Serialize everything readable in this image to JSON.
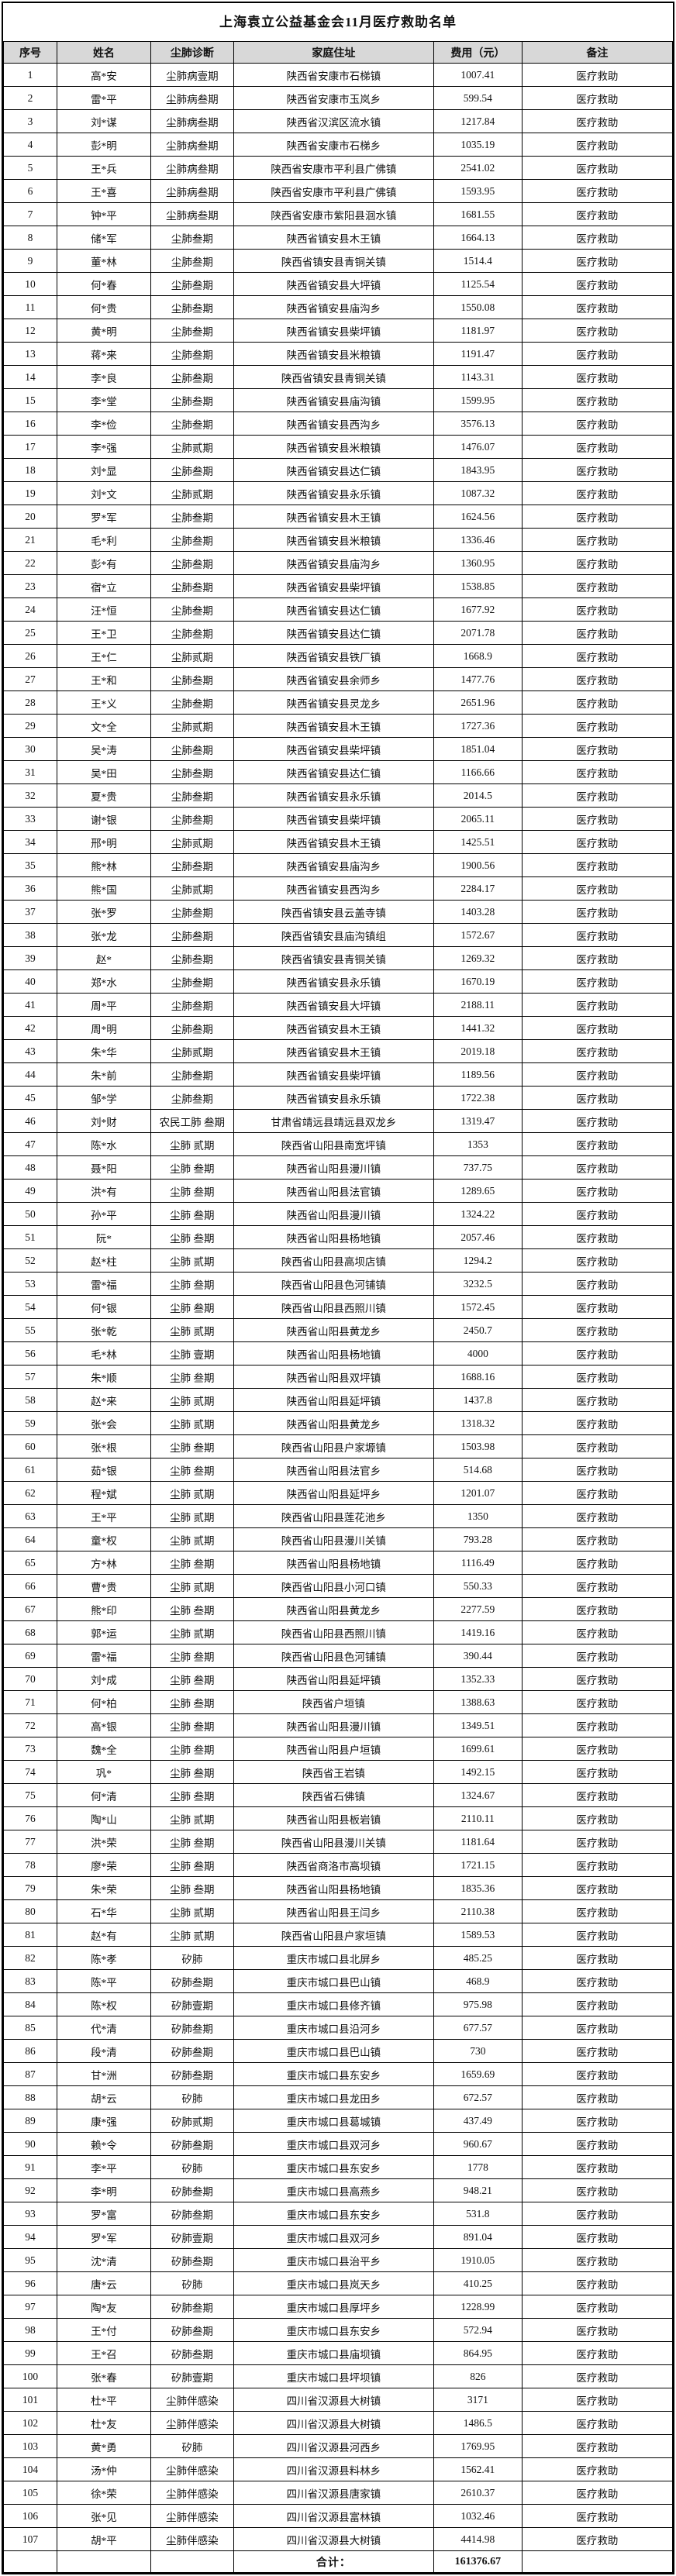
{
  "doc": {
    "title": "上海袁立公益基金会11月医疗救助名单"
  },
  "table": {
    "headers": [
      "序号",
      "姓名",
      "尘肺诊断",
      "家庭住址",
      "费用（元）",
      "备注"
    ],
    "col_keys": [
      "no",
      "name",
      "diagnosis",
      "address",
      "fee",
      "remark"
    ],
    "total_label": "合计：",
    "total_value": "161376.67",
    "rows": [
      [
        "1",
        "高*安",
        "尘肺病壹期",
        "陕西省安康市石梯镇",
        "1007.41",
        "医疗救助"
      ],
      [
        "2",
        "雷*平",
        "尘肺病叁期",
        "陕西省安康市玉岚乡",
        "599.54",
        "医疗救助"
      ],
      [
        "3",
        "刘*谋",
        "尘肺病叁期",
        "陕西省汉滨区流水镇",
        "1217.84",
        "医疗救助"
      ],
      [
        "4",
        "彭*明",
        "尘肺病叁期",
        "陕西省安康市石梯乡",
        "1035.19",
        "医疗救助"
      ],
      [
        "5",
        "王*兵",
        "尘肺病叁期",
        "陕西省安康市平利县广佛镇",
        "2541.02",
        "医疗救助"
      ],
      [
        "6",
        "王*喜",
        "尘肺病叁期",
        "陕西省安康市平利县广佛镇",
        "1593.95",
        "医疗救助"
      ],
      [
        "7",
        "钟*平",
        "尘肺病叁期",
        "陕西省安康市紫阳县洄水镇",
        "1681.55",
        "医疗救助"
      ],
      [
        "8",
        "储*军",
        "尘肺叁期",
        "陕西省镇安县木王镇",
        "1664.13",
        "医疗救助"
      ],
      [
        "9",
        "董*林",
        "尘肺叁期",
        "陕西省镇安县青铜关镇",
        "1514.4",
        "医疗救助"
      ],
      [
        "10",
        "何*春",
        "尘肺叁期",
        "陕西省镇安县大坪镇",
        "1125.54",
        "医疗救助"
      ],
      [
        "11",
        "何*贵",
        "尘肺叁期",
        "陕西省镇安县庙沟乡",
        "1550.08",
        "医疗救助"
      ],
      [
        "12",
        "黄*明",
        "尘肺叁期",
        "陕西省镇安县柴坪镇",
        "1181.97",
        "医疗救助"
      ],
      [
        "13",
        "蒋*来",
        "尘肺叁期",
        "陕西省镇安县米粮镇",
        "1191.47",
        "医疗救助"
      ],
      [
        "14",
        "李*良",
        "尘肺叁期",
        "陕西省镇安县青铜关镇",
        "1143.31",
        "医疗救助"
      ],
      [
        "15",
        "李*堂",
        "尘肺叁期",
        "陕西省镇安县庙沟镇",
        "1599.95",
        "医疗救助"
      ],
      [
        "16",
        "李*俭",
        "尘肺叁期",
        "陕西省镇安县西沟乡",
        "3576.13",
        "医疗救助"
      ],
      [
        "17",
        "李*强",
        "尘肺贰期",
        "陕西省镇安县米粮镇",
        "1476.07",
        "医疗救助"
      ],
      [
        "18",
        "刘*显",
        "尘肺叁期",
        "陕西省镇安县达仁镇",
        "1843.95",
        "医疗救助"
      ],
      [
        "19",
        "刘*文",
        "尘肺贰期",
        "陕西省镇安县永乐镇",
        "1087.32",
        "医疗救助"
      ],
      [
        "20",
        "罗*军",
        "尘肺叁期",
        "陕西省镇安县木王镇",
        "1624.56",
        "医疗救助"
      ],
      [
        "21",
        "毛*利",
        "尘肺叁期",
        "陕西省镇安县米粮镇",
        "1336.46",
        "医疗救助"
      ],
      [
        "22",
        "彭*有",
        "尘肺叁期",
        "陕西省镇安县庙沟乡",
        "1360.95",
        "医疗救助"
      ],
      [
        "23",
        "宿*立",
        "尘肺叁期",
        "陕西省镇安县柴坪镇",
        "1538.85",
        "医疗救助"
      ],
      [
        "24",
        "汪*恒",
        "尘肺叁期",
        "陕西省镇安县达仁镇",
        "1677.92",
        "医疗救助"
      ],
      [
        "25",
        "王*卫",
        "尘肺叁期",
        "陕西省镇安县达仁镇",
        "2071.78",
        "医疗救助"
      ],
      [
        "26",
        "王*仁",
        "尘肺贰期",
        "陕西省镇安县铁厂镇",
        "1668.9",
        "医疗救助"
      ],
      [
        "27",
        "王*和",
        "尘肺叁期",
        "陕西省镇安县余师乡",
        "1477.76",
        "医疗救助"
      ],
      [
        "28",
        "王*义",
        "尘肺叁期",
        "陕西省镇安县灵龙乡",
        "2651.96",
        "医疗救助"
      ],
      [
        "29",
        "文*全",
        "尘肺贰期",
        "陕西省镇安县木王镇",
        "1727.36",
        "医疗救助"
      ],
      [
        "30",
        "吴*涛",
        "尘肺叁期",
        "陕西省镇安县柴坪镇",
        "1851.04",
        "医疗救助"
      ],
      [
        "31",
        "吴*田",
        "尘肺叁期",
        "陕西省镇安县达仁镇",
        "1166.66",
        "医疗救助"
      ],
      [
        "32",
        "夏*贵",
        "尘肺叁期",
        "陕西省镇安县永乐镇",
        "2014.5",
        "医疗救助"
      ],
      [
        "33",
        "谢*银",
        "尘肺叁期",
        "陕西省镇安县柴坪镇",
        "2065.11",
        "医疗救助"
      ],
      [
        "34",
        "邢*明",
        "尘肺贰期",
        "陕西省镇安县木王镇",
        "1425.51",
        "医疗救助"
      ],
      [
        "35",
        "熊*林",
        "尘肺叁期",
        "陕西省镇安县庙沟乡",
        "1900.56",
        "医疗救助"
      ],
      [
        "36",
        "熊*国",
        "尘肺贰期",
        "陕西省镇安县西沟乡",
        "2284.17",
        "医疗救助"
      ],
      [
        "37",
        "张*罗",
        "尘肺叁期",
        "陕西省镇安县云盖寺镇",
        "1403.28",
        "医疗救助"
      ],
      [
        "38",
        "张*龙",
        "尘肺叁期",
        "陕西省镇安县庙沟镇组",
        "1572.67",
        "医疗救助"
      ],
      [
        "39",
        "赵*",
        "尘肺叁期",
        "陕西省镇安县青铜关镇",
        "1269.32",
        "医疗救助"
      ],
      [
        "40",
        "郑*水",
        "尘肺叁期",
        "陕西省镇安县永乐镇",
        "1670.19",
        "医疗救助"
      ],
      [
        "41",
        "周*平",
        "尘肺叁期",
        "陕西省镇安县大坪镇",
        "2188.11",
        "医疗救助"
      ],
      [
        "42",
        "周*明",
        "尘肺叁期",
        "陕西省镇安县木王镇",
        "1441.32",
        "医疗救助"
      ],
      [
        "43",
        "朱*华",
        "尘肺贰期",
        "陕西省镇安县木王镇",
        "2019.18",
        "医疗救助"
      ],
      [
        "44",
        "朱*前",
        "尘肺叁期",
        "陕西省镇安县柴坪镇",
        "1189.56",
        "医疗救助"
      ],
      [
        "45",
        "邹*学",
        "尘肺叁期",
        "陕西省镇安县永乐镇",
        "1722.38",
        "医疗救助"
      ],
      [
        "46",
        "刘*财",
        "农民工肺 叁期",
        "甘肃省靖远县靖远县双龙乡",
        "1319.47",
        "医疗救助"
      ],
      [
        "47",
        "陈*水",
        "尘肺 贰期",
        "陕西省山阳县南宽坪镇",
        "1353",
        "医疗救助"
      ],
      [
        "48",
        "聂*阳",
        "尘肺 叁期",
        "陕西省山阳县漫川镇",
        "737.75",
        "医疗救助"
      ],
      [
        "49",
        "洪*有",
        "尘肺 叁期",
        "陕西省山阳县法官镇",
        "1289.65",
        "医疗救助"
      ],
      [
        "50",
        "孙*平",
        "尘肺 叁期",
        "陕西省山阳县漫川镇",
        "1324.22",
        "医疗救助"
      ],
      [
        "51",
        "阮*",
        "尘肺 叁期",
        "陕西省山阳县杨地镇",
        "2057.46",
        "医疗救助"
      ],
      [
        "52",
        "赵*柱",
        "尘肺 贰期",
        "陕西省山阳县高坝店镇",
        "1294.2",
        "医疗救助"
      ],
      [
        "53",
        "雷*福",
        "尘肺 叁期",
        "陕西省山阳县色河铺镇",
        "3232.5",
        "医疗救助"
      ],
      [
        "54",
        "何*银",
        "尘肺 叁期",
        "陕西省山阳县西照川镇",
        "1572.45",
        "医疗救助"
      ],
      [
        "55",
        "张*乾",
        "尘肺 贰期",
        "陕西省山阳县黄龙乡",
        "2450.7",
        "医疗救助"
      ],
      [
        "56",
        "毛*林",
        "尘肺 壹期",
        "陕西省山阳县杨地镇",
        "4000",
        "医疗救助"
      ],
      [
        "57",
        "朱*顺",
        "尘肺 叁期",
        "陕西省山阳县双坪镇",
        "1688.16",
        "医疗救助"
      ],
      [
        "58",
        "赵*来",
        "尘肺 贰期",
        "陕西省山阳县延坪镇",
        "1437.8",
        "医疗救助"
      ],
      [
        "59",
        "张*会",
        "尘肺 贰期",
        "陕西省山阳县黄龙乡",
        "1318.32",
        "医疗救助"
      ],
      [
        "60",
        "张*根",
        "尘肺 叁期",
        "陕西省山阳县户家塬镇",
        "1503.98",
        "医疗救助"
      ],
      [
        "61",
        "茹*银",
        "尘肺 叁期",
        "陕西省山阳县法官乡",
        "514.68",
        "医疗救助"
      ],
      [
        "62",
        "程*斌",
        "尘肺 贰期",
        "陕西省山阳县延坪乡",
        "1201.07",
        "医疗救助"
      ],
      [
        "63",
        "王*平",
        "尘肺 贰期",
        "陕西省山阳县莲花池乡",
        "1350",
        "医疗救助"
      ],
      [
        "64",
        "童*权",
        "尘肺 贰期",
        "陕西省山阳县漫川关镇",
        "793.28",
        "医疗救助"
      ],
      [
        "65",
        "方*林",
        "尘肺 叁期",
        "陕西省山阳县杨地镇",
        "1116.49",
        "医疗救助"
      ],
      [
        "66",
        "曹*贵",
        "尘肺 贰期",
        "陕西省山阳县小河口镇",
        "550.33",
        "医疗救助"
      ],
      [
        "67",
        "熊*印",
        "尘肺 叁期",
        "陕西省山阳县黄龙乡",
        "2277.59",
        "医疗救助"
      ],
      [
        "68",
        "郭*运",
        "尘肺 贰期",
        "陕西省山阳县西照川镇",
        "1419.16",
        "医疗救助"
      ],
      [
        "69",
        "雷*福",
        "尘肺 叁期",
        "陕西省山阳县色河铺镇",
        "390.44",
        "医疗救助"
      ],
      [
        "70",
        "刘*成",
        "尘肺 叁期",
        "陕西省山阳县延坪镇",
        "1352.33",
        "医疗救助"
      ],
      [
        "71",
        "何*柏",
        "尘肺 叁期",
        "陕西省户垣镇",
        "1388.63",
        "医疗救助"
      ],
      [
        "72",
        "高*银",
        "尘肺 叁期",
        "陕西省山阳县漫川镇",
        "1349.51",
        "医疗救助"
      ],
      [
        "73",
        "魏*全",
        "尘肺 叁期",
        "陕西省山阳县户垣镇",
        "1699.61",
        "医疗救助"
      ],
      [
        "74",
        "巩*",
        "尘肺 叁期",
        "陕西省王岩镇",
        "1492.15",
        "医疗救助"
      ],
      [
        "75",
        "何*清",
        "尘肺 叁期",
        "陕西省石佛镇",
        "1324.67",
        "医疗救助"
      ],
      [
        "76",
        "陶*山",
        "尘肺 贰期",
        "陕西省山阳县板岩镇",
        "2110.11",
        "医疗救助"
      ],
      [
        "77",
        "洪*荣",
        "尘肺 叁期",
        "陕西省山阳县漫川关镇",
        "1181.64",
        "医疗救助"
      ],
      [
        "78",
        "廖*荣",
        "尘肺 叁期",
        "陕西省商洛市高坝镇",
        "1721.15",
        "医疗救助"
      ],
      [
        "79",
        "朱*荣",
        "尘肺 叁期",
        "陕西省山阳县杨地镇",
        "1835.36",
        "医疗救助"
      ],
      [
        "80",
        "石*华",
        "尘肺 贰期",
        "陕西省山阳县王闫乡",
        "2110.38",
        "医疗救助"
      ],
      [
        "81",
        "赵*有",
        "尘肺 贰期",
        "陕西省山阳县户家垣镇",
        "1589.53",
        "医疗救助"
      ],
      [
        "82",
        "陈*孝",
        "矽肺",
        "重庆市城口县北屏乡",
        "485.25",
        "医疗救助"
      ],
      [
        "83",
        "陈*平",
        "矽肺叁期",
        "重庆市城口县巴山镇",
        "468.9",
        "医疗救助"
      ],
      [
        "84",
        "陈*权",
        "矽肺壹期",
        "重庆市城口县修齐镇",
        "975.98",
        "医疗救助"
      ],
      [
        "85",
        "代*清",
        "矽肺叁期",
        "重庆市城口县沿河乡",
        "677.57",
        "医疗救助"
      ],
      [
        "86",
        "段*清",
        "矽肺叁期",
        "重庆市城口县巴山镇",
        "730",
        "医疗救助"
      ],
      [
        "87",
        "甘*洲",
        "矽肺叁期",
        "重庆市城口县东安乡",
        "1659.69",
        "医疗救助"
      ],
      [
        "88",
        "胡*云",
        "矽肺",
        "重庆市城口县龙田乡",
        "672.57",
        "医疗救助"
      ],
      [
        "89",
        "康*强",
        "矽肺贰期",
        "重庆市城口县葛城镇",
        "437.49",
        "医疗救助"
      ],
      [
        "90",
        "赖*令",
        "矽肺叁期",
        "重庆市城口县双河乡",
        "960.67",
        "医疗救助"
      ],
      [
        "91",
        "李*平",
        "矽肺",
        "重庆市城口县东安乡",
        "1778",
        "医疗救助"
      ],
      [
        "92",
        "李*明",
        "矽肺叁期",
        "重庆市城口县高燕乡",
        "948.21",
        "医疗救助"
      ],
      [
        "93",
        "罗*富",
        "矽肺叁期",
        "重庆市城口县东安乡",
        "531.8",
        "医疗救助"
      ],
      [
        "94",
        "罗*军",
        "矽肺壹期",
        "重庆市城口县双河乡",
        "891.04",
        "医疗救助"
      ],
      [
        "95",
        "沈*清",
        "矽肺叁期",
        "重庆市城口县治平乡",
        "1910.05",
        "医疗救助"
      ],
      [
        "96",
        "唐*云",
        "矽肺",
        "重庆市城口县岚天乡",
        "410.25",
        "医疗救助"
      ],
      [
        "97",
        "陶*友",
        "矽肺叁期",
        "重庆市城口县厚坪乡",
        "1228.99",
        "医疗救助"
      ],
      [
        "98",
        "王*付",
        "矽肺叁期",
        "重庆市城口县东安乡",
        "572.94",
        "医疗救助"
      ],
      [
        "99",
        "王*召",
        "矽肺叁期",
        "重庆市城口县庙坝镇",
        "864.95",
        "医疗救助"
      ],
      [
        "100",
        "张*春",
        "矽肺壹期",
        "重庆市城口县坪坝镇",
        "826",
        "医疗救助"
      ],
      [
        "101",
        "杜*平",
        "尘肺伴感染",
        "四川省汉源县大树镇",
        "3171",
        "医疗救助"
      ],
      [
        "102",
        "杜*友",
        "尘肺伴感染",
        "四川省汉源县大树镇",
        "1486.5",
        "医疗救助"
      ],
      [
        "103",
        "黄*勇",
        "矽肺",
        "四川省汉源县河西乡",
        "1769.95",
        "医疗救助"
      ],
      [
        "104",
        "汤*仲",
        "尘肺伴感染",
        "四川省汉源县料林乡",
        "1562.41",
        "医疗救助"
      ],
      [
        "105",
        "徐*荣",
        "尘肺伴感染",
        "四川省汉源县唐家镇",
        "2610.37",
        "医疗救助"
      ],
      [
        "106",
        "张*见",
        "尘肺伴感染",
        "四川省汉源县富林镇",
        "1032.46",
        "医疗救助"
      ],
      [
        "107",
        "胡*平",
        "尘肺伴感染",
        "四川省汉源县大树镇",
        "4414.98",
        "医疗救助"
      ]
    ]
  }
}
